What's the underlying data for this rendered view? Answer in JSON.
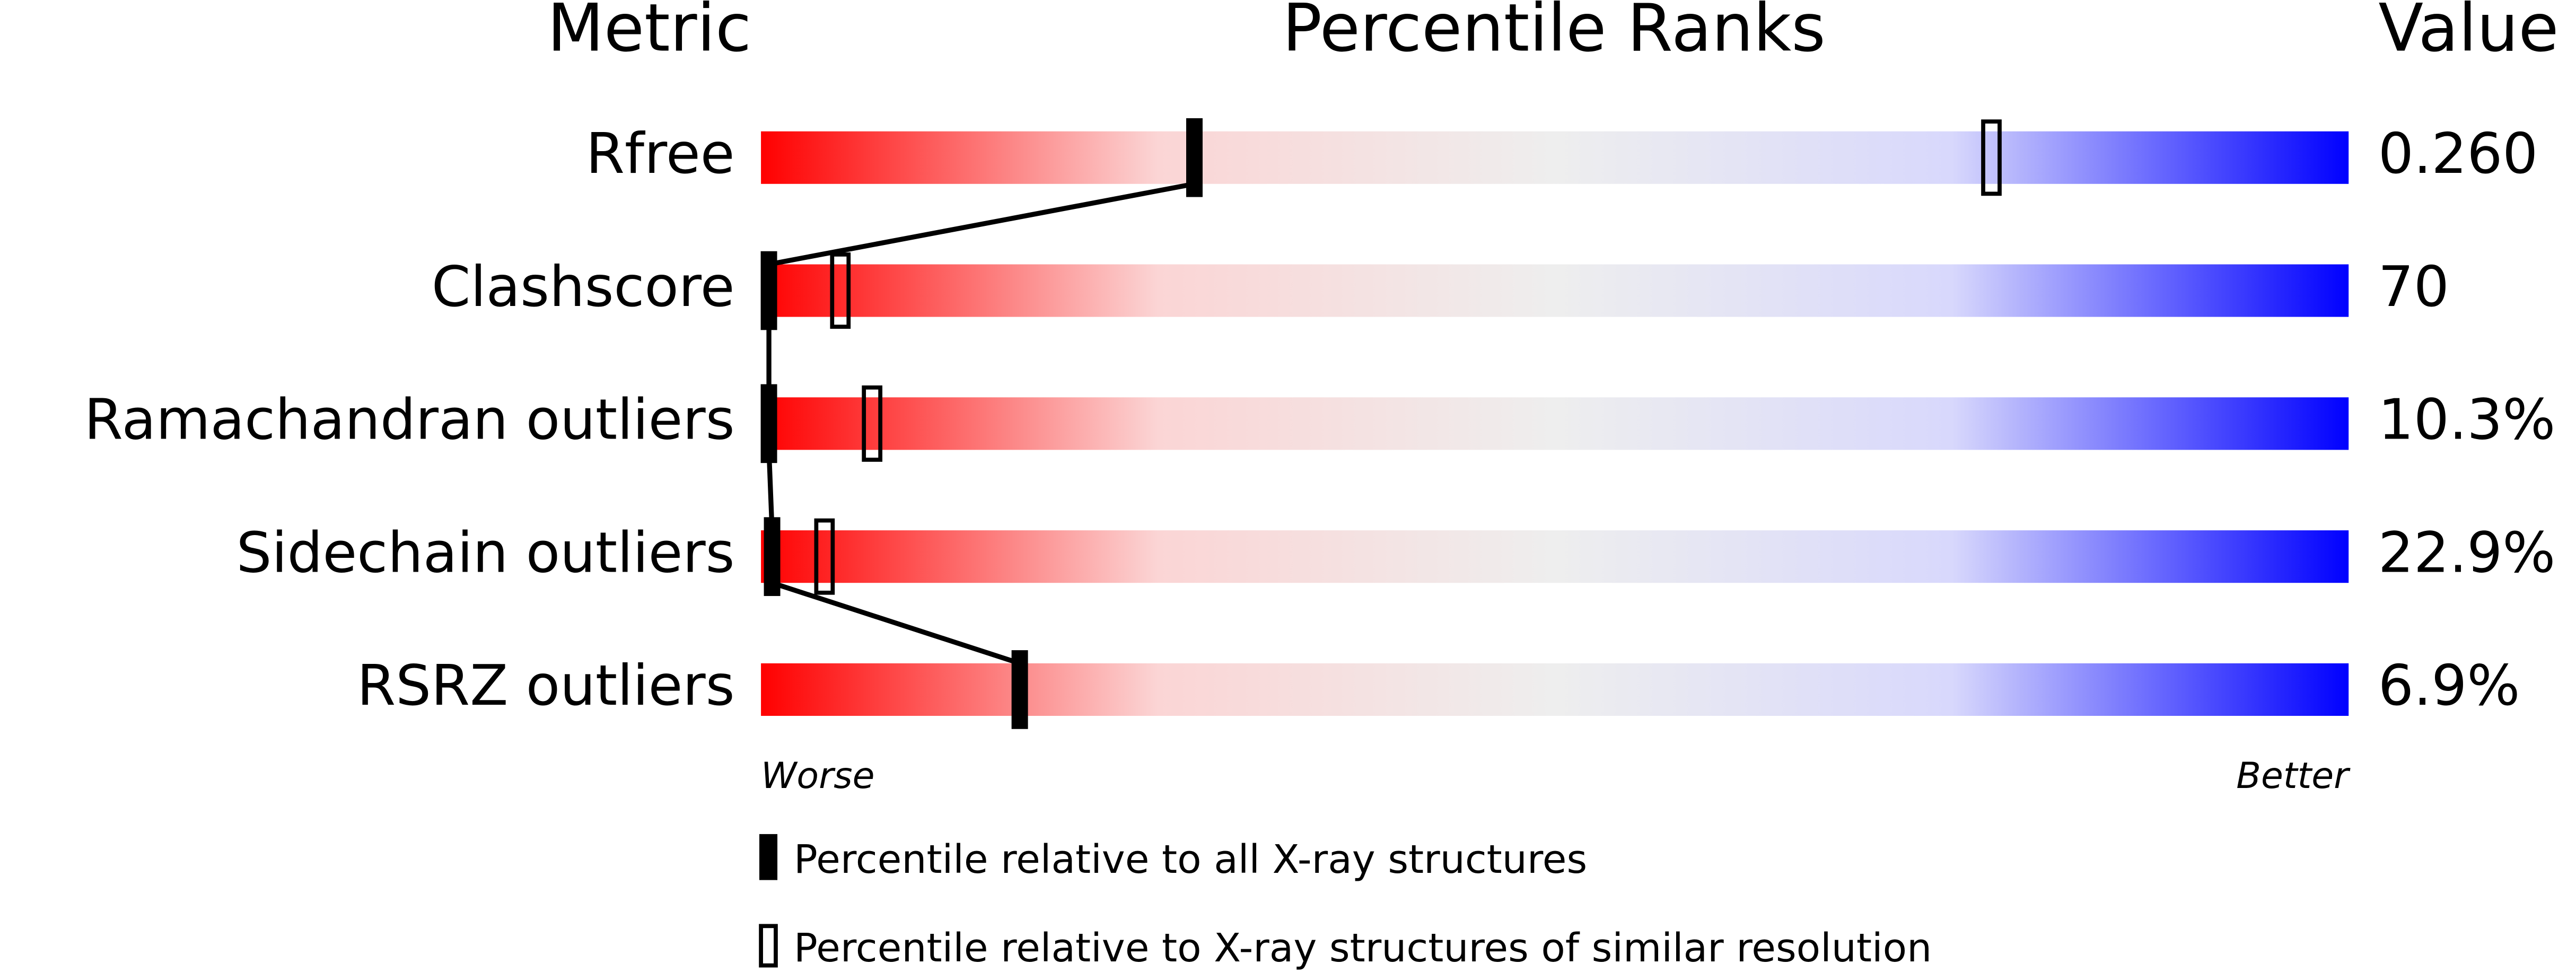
{
  "chart_data": {
    "type": "percentile-slider",
    "headers": {
      "metric": "Metric",
      "ranks": "Percentile Ranks",
      "value": "Value"
    },
    "categories": [
      "Rfree",
      "Clashscore",
      "Ramachandran outliers",
      "Sidechain outliers",
      "RSRZ outliers"
    ],
    "metric_values": [
      "0.260",
      "70",
      "10.3%",
      "22.9%",
      "6.9%"
    ],
    "xlim": [
      0,
      100
    ],
    "series": [
      {
        "name": "Percentile relative to all X-ray structures",
        "style": "filled",
        "color": "#000000",
        "values": [
          27.3,
          0.5,
          0.5,
          0.7,
          16.3
        ]
      },
      {
        "name": "Percentile relative to X-ray structures of similar resolution",
        "style": "open",
        "color": "#000000",
        "values": [
          77.5,
          5,
          7,
          4,
          null
        ]
      }
    ],
    "axis_labels": {
      "worse": "Worse",
      "better": "Better"
    },
    "gradient": [
      "#ff0000",
      "#fbd5d5",
      "#eeeeee",
      "#d8d8fc",
      "#0000ff"
    ]
  }
}
